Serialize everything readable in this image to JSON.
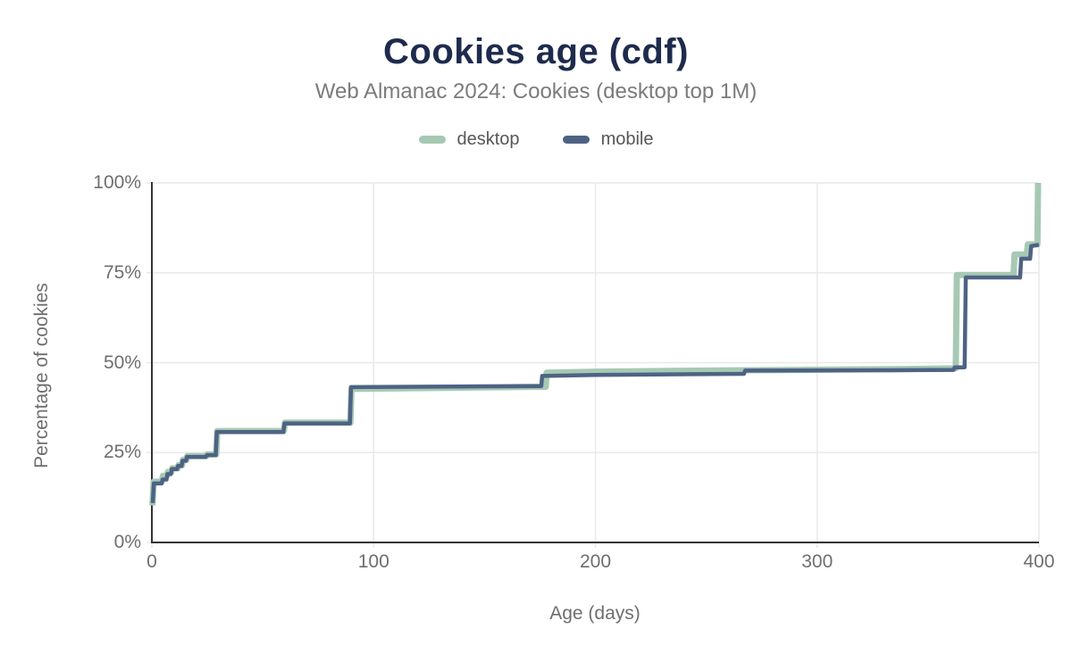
{
  "header": {
    "title": "Cookies age (cdf)",
    "subtitle": "Web Almanac 2024: Cookies (desktop top 1M)"
  },
  "legend": [
    {
      "label": "desktop",
      "color": "#a6c9b4"
    },
    {
      "label": "mobile",
      "color": "#4e6384"
    }
  ],
  "chart_data": {
    "type": "line",
    "title": "Cookies age (cdf)",
    "subtitle": "Web Almanac 2024: Cookies (desktop top 1M)",
    "xlabel": "Age (days)",
    "ylabel": "Percentage of cookies",
    "xlim": [
      0,
      400
    ],
    "ylim": [
      0,
      100
    ],
    "grid": true,
    "legend_position": "top",
    "interpolation": "linear (CDF step corners encoded as explicit vertices; x = age in days, y = cumulative % of cookies)",
    "x_ticks": [
      {
        "value": 0,
        "label": "0"
      },
      {
        "value": 100,
        "label": "100"
      },
      {
        "value": 200,
        "label": "200"
      },
      {
        "value": 300,
        "label": "300"
      },
      {
        "value": 400,
        "label": "400"
      }
    ],
    "y_ticks": [
      {
        "value": 0,
        "label": "0%"
      },
      {
        "value": 25,
        "label": "25%"
      },
      {
        "value": 50,
        "label": "50%"
      },
      {
        "value": 75,
        "label": "75%"
      },
      {
        "value": 100,
        "label": "100%"
      }
    ],
    "colors": {
      "grid": "#e9e9e9",
      "axis": "#333333"
    },
    "series": [
      {
        "name": "desktop",
        "color": "#a6c9b4",
        "width": 7,
        "points": [
          [
            0.3,
            10.3
          ],
          [
            0.8,
            16.9
          ],
          [
            4.5,
            16.9
          ],
          [
            5,
            18.5
          ],
          [
            6.8,
            18.5
          ],
          [
            7.2,
            19.6
          ],
          [
            8.8,
            19.6
          ],
          [
            9.2,
            20.6
          ],
          [
            11.6,
            20.6
          ],
          [
            12,
            21.5
          ],
          [
            13.6,
            21.5
          ],
          [
            14,
            23.0
          ],
          [
            15.6,
            23.0
          ],
          [
            16,
            24.0
          ],
          [
            24.5,
            24.0
          ],
          [
            25,
            24.5
          ],
          [
            29,
            24.5
          ],
          [
            29.5,
            31.0
          ],
          [
            59.5,
            31.0
          ],
          [
            60,
            33.3
          ],
          [
            89.5,
            33.3
          ],
          [
            90,
            42.7
          ],
          [
            175,
            43.3
          ],
          [
            177.6,
            43.3
          ],
          [
            178,
            47.2
          ],
          [
            200,
            47.5
          ],
          [
            267,
            47.9
          ],
          [
            334,
            48.2
          ],
          [
            362.5,
            48.4
          ],
          [
            363,
            74.4
          ],
          [
            388.5,
            74.4
          ],
          [
            389,
            80.1
          ],
          [
            394.5,
            80.1
          ],
          [
            395,
            82.9
          ],
          [
            399.3,
            82.9
          ],
          [
            399.6,
            100
          ]
        ]
      },
      {
        "name": "mobile",
        "color": "#4e6384",
        "width": 4.5,
        "points": [
          [
            0.4,
            11.0
          ],
          [
            0.9,
            16.4
          ],
          [
            4.4,
            16.4
          ],
          [
            4.8,
            17.5
          ],
          [
            6.6,
            17.5
          ],
          [
            7,
            19.0
          ],
          [
            8.6,
            19.0
          ],
          [
            9,
            20.4
          ],
          [
            11.4,
            20.4
          ],
          [
            11.8,
            21.3
          ],
          [
            13.4,
            21.3
          ],
          [
            13.8,
            22.7
          ],
          [
            15.4,
            22.7
          ],
          [
            15.8,
            23.8
          ],
          [
            24.3,
            23.8
          ],
          [
            24.8,
            24.3
          ],
          [
            28.8,
            24.3
          ],
          [
            29.3,
            30.7
          ],
          [
            59.3,
            30.7
          ],
          [
            59.8,
            33.1
          ],
          [
            89.3,
            33.1
          ],
          [
            89.8,
            43.2
          ],
          [
            175,
            43.5
          ],
          [
            175.6,
            43.5
          ],
          [
            176,
            46.3
          ],
          [
            200,
            46.6
          ],
          [
            267,
            46.9
          ],
          [
            267.5,
            47.8
          ],
          [
            334,
            47.9
          ],
          [
            361.5,
            48.0
          ],
          [
            362,
            48.7
          ],
          [
            366.5,
            48.7
          ],
          [
            367,
            73.7
          ],
          [
            391.5,
            73.7
          ],
          [
            392,
            78.9
          ],
          [
            396,
            78.9
          ],
          [
            396.5,
            82.4
          ],
          [
            400,
            82.8
          ]
        ]
      }
    ]
  }
}
